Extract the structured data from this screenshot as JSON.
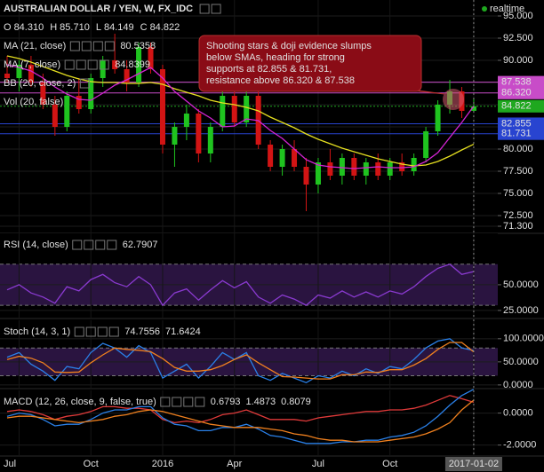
{
  "chart_data": [
    {
      "type": "candlestick",
      "title": "AUSTRALIAN DOLLAR / YEN, W, FX_IDC",
      "status": "realtime",
      "ohlc_legend": [
        {
          "key": "O",
          "label": "84.310"
        },
        {
          "key": "H",
          "label": "85.710"
        },
        {
          "key": "L",
          "label": "84.149"
        },
        {
          "key": "C",
          "label": "84.822"
        }
      ],
      "categories": [
        null,
        "Jul",
        null,
        null,
        null,
        null,
        null,
        "Oct",
        null,
        null,
        null,
        null,
        null,
        "2016",
        null,
        null,
        null,
        null,
        null,
        "Apr",
        null,
        null,
        null,
        null,
        null,
        null,
        "Jul",
        null,
        null,
        null,
        null,
        null,
        "Oct",
        null,
        null,
        null,
        null,
        null,
        null,
        "2017-01-02"
      ],
      "open": [
        88.5,
        88.0,
        89.5,
        87.5,
        85.0,
        82.5,
        86.0,
        84.5,
        88.0,
        90.0,
        89.0,
        87.5,
        91.5,
        89.0,
        80.5,
        82.5,
        84.0,
        79.5,
        82.5,
        86.0,
        83.0,
        86.0,
        80.5,
        78.0,
        80.0,
        78.0,
        76.0,
        78.5,
        77.0,
        79.0,
        77.0,
        78.5,
        77.0,
        78.5,
        77.5,
        79.0,
        82.0,
        85.0,
        86.5,
        84.31
      ],
      "high": [
        90.5,
        90.0,
        90.5,
        88.5,
        86.0,
        86.5,
        88.0,
        88.5,
        90.5,
        93.0,
        90.0,
        92.0,
        92.0,
        89.5,
        83.0,
        85.0,
        84.5,
        83.0,
        86.5,
        87.0,
        86.5,
        86.5,
        81.0,
        80.5,
        81.0,
        79.0,
        79.0,
        80.0,
        79.5,
        79.5,
        79.0,
        79.5,
        79.0,
        79.5,
        79.5,
        82.5,
        85.5,
        87.8,
        87.0,
        85.71
      ],
      "low": [
        87.5,
        86.5,
        87.0,
        84.5,
        81.5,
        82.0,
        84.0,
        84.0,
        87.0,
        88.5,
        86.5,
        87.0,
        88.5,
        79.5,
        78.0,
        81.0,
        78.5,
        78.5,
        82.0,
        82.5,
        82.5,
        80.0,
        77.5,
        77.0,
        77.5,
        73.0,
        75.0,
        76.5,
        76.0,
        76.5,
        76.0,
        76.5,
        76.5,
        77.0,
        77.0,
        78.5,
        81.5,
        84.0,
        83.5,
        84.149
      ],
      "close": [
        88.0,
        89.5,
        87.5,
        85.0,
        82.5,
        86.0,
        84.5,
        88.0,
        90.0,
        89.0,
        87.5,
        91.5,
        89.0,
        80.5,
        82.5,
        84.0,
        79.5,
        82.5,
        86.0,
        83.0,
        86.0,
        80.5,
        78.0,
        80.0,
        78.0,
        76.0,
        78.5,
        77.0,
        79.0,
        77.0,
        78.5,
        77.0,
        78.5,
        77.5,
        79.0,
        82.0,
        85.0,
        86.5,
        84.3,
        84.822
      ],
      "up_color": "#1fc41f",
      "down_color": "#d21414",
      "series": [
        {
          "name": "MA (21, close)",
          "color": "#e6e020",
          "values": [
            90.5,
            90.2,
            89.8,
            89.3,
            88.8,
            88.3,
            87.9,
            87.6,
            87.5,
            87.5,
            87.4,
            87.4,
            87.5,
            87.3,
            86.8,
            86.4,
            86.0,
            85.5,
            85.2,
            85.0,
            84.7,
            84.3,
            83.6,
            83.0,
            82.4,
            81.7,
            81.1,
            80.6,
            80.1,
            79.7,
            79.3,
            78.9,
            78.6,
            78.3,
            78.1,
            78.2,
            78.6,
            79.2,
            79.9,
            80.5358
          ]
        },
        {
          "name": "MA (7, close)",
          "color": "#d424d4",
          "values": [
            89.5,
            89.2,
            88.8,
            88.0,
            87.0,
            86.2,
            85.6,
            85.5,
            86.3,
            87.2,
            87.8,
            88.5,
            89.2,
            88.0,
            86.5,
            85.4,
            84.3,
            83.5,
            82.5,
            82.6,
            83.4,
            83.2,
            82.1,
            81.2,
            80.0,
            78.8,
            78.2,
            78.0,
            77.9,
            77.8,
            77.9,
            78.0,
            77.9,
            77.9,
            78.0,
            78.6,
            79.6,
            81.3,
            83.0,
            84.8399
          ]
        }
      ],
      "indicator_labels": [
        "BB (20, close, 2)",
        "Vol (20, false)"
      ],
      "levels": [
        {
          "value": 87.538,
          "color": "#c84cc8"
        },
        {
          "value": 86.32,
          "label": "86.320",
          "color": "#c84cc8"
        },
        {
          "value": 84.822,
          "color": "#1fa81f"
        },
        {
          "value": 82.855,
          "color": "#2844d0"
        },
        {
          "value": 81.731,
          "color": "#2844d0"
        }
      ],
      "annotation": [
        "Shooting stars & doji evidence slumps",
        "below SMAs, heading for strong",
        "supports at 82.855 & 81.731,",
        "resistance above 86.320 & 87.538"
      ],
      "ylim": [
        70.6,
        96.8
      ],
      "yticks": [
        {
          "value": 95,
          "label": "95.000"
        },
        {
          "value": 92.5,
          "label": "92.500"
        },
        {
          "value": 90,
          "label": "90.000"
        },
        {
          "value": 87.5,
          "label": "87.500"
        },
        {
          "value": 85,
          "label": "85.000"
        },
        {
          "value": 82.5,
          "label": "82.500"
        },
        {
          "value": 80,
          "label": "80.000"
        },
        {
          "value": 77.5,
          "label": "77.500"
        },
        {
          "value": 75,
          "label": "75.000"
        },
        {
          "value": 72.5,
          "label": "72.500"
        },
        {
          "value": 71.3,
          "label": "71.300"
        }
      ],
      "grid": true
    },
    {
      "type": "line",
      "title": "RSI (14, close)",
      "series": [
        {
          "color": "#8a3ad0",
          "values": [
            45,
            50,
            42,
            38,
            32,
            48,
            44,
            55,
            60,
            52,
            48,
            58,
            50,
            30,
            42,
            46,
            35,
            45,
            54,
            47,
            53,
            38,
            32,
            40,
            36,
            30,
            40,
            37,
            44,
            38,
            43,
            38,
            44,
            41,
            48,
            58,
            66,
            70,
            60,
            62.7907
          ]
        }
      ],
      "bands": [
        30,
        70
      ],
      "band_color": "#2a1440",
      "ylim": [
        18,
        100
      ],
      "yticks": [
        {
          "value": 50,
          "label": "50.0000"
        },
        {
          "value": 25,
          "label": "25.0000"
        }
      ],
      "grid": true
    },
    {
      "type": "line",
      "title": "Stoch (14, 3, 1)",
      "series": [
        {
          "color": "#2a80e8",
          "values": [
            60,
            70,
            45,
            30,
            10,
            40,
            35,
            70,
            90,
            80,
            60,
            85,
            70,
            15,
            30,
            45,
            15,
            40,
            70,
            55,
            70,
            20,
            10,
            25,
            15,
            5,
            20,
            15,
            30,
            20,
            35,
            25,
            40,
            35,
            55,
            80,
            95,
            100,
            80,
            74.7556
          ]
        },
        {
          "color": "#f0801e",
          "values": [
            55,
            62,
            58,
            48,
            28,
            27,
            28,
            48,
            65,
            80,
            77,
            75,
            72,
            57,
            38,
            30,
            30,
            33,
            42,
            55,
            65,
            48,
            33,
            18,
            17,
            15,
            13,
            13,
            22,
            22,
            28,
            27,
            33,
            33,
            43,
            57,
            77,
            92,
            92,
            71.6424
          ]
        }
      ],
      "bands": [
        20,
        80
      ],
      "band_color": "#2a1440",
      "ylim": [
        -6,
        140
      ],
      "yticks": [
        {
          "value": 100,
          "label": "100.0000"
        },
        {
          "value": 50,
          "label": "50.0000"
        },
        {
          "value": 0,
          "label": "0.0000"
        }
      ],
      "grid": true
    },
    {
      "type": "line",
      "title": "MACD (12, 26, close, 9, false, true)",
      "series": [
        {
          "color": "#e03a3a",
          "values": [
            0.1,
            0.2,
            0.1,
            -0.1,
            -0.4,
            -0.2,
            -0.1,
            0.1,
            0.4,
            0.4,
            0.3,
            0.3,
            0.2,
            -0.4,
            -0.6,
            -0.5,
            -0.6,
            -0.4,
            -0.1,
            0.0,
            0.2,
            -0.1,
            -0.4,
            -0.4,
            -0.4,
            -0.5,
            -0.3,
            -0.2,
            -0.1,
            0.0,
            0.1,
            0.1,
            0.2,
            0.2,
            0.3,
            0.5,
            0.8,
            1.1,
            0.9,
            0.6793
          ]
        },
        {
          "color": "#2a80e8",
          "values": [
            -0.2,
            0.0,
            -0.1,
            -0.4,
            -0.8,
            -0.7,
            -0.7,
            -0.4,
            0.0,
            0.2,
            0.2,
            0.4,
            0.4,
            -0.3,
            -0.7,
            -0.8,
            -1.1,
            -1.1,
            -0.9,
            -0.9,
            -0.7,
            -1.0,
            -1.4,
            -1.5,
            -1.7,
            -1.9,
            -1.9,
            -1.9,
            -1.8,
            -1.8,
            -1.7,
            -1.7,
            -1.5,
            -1.4,
            -1.2,
            -0.8,
            -0.2,
            0.5,
            1.1,
            1.4873
          ]
        },
        {
          "color": "#f0801e",
          "values": [
            -0.3,
            -0.2,
            -0.2,
            -0.3,
            -0.4,
            -0.5,
            -0.6,
            -0.5,
            -0.4,
            -0.2,
            -0.1,
            0.1,
            0.2,
            0.1,
            -0.1,
            -0.3,
            -0.5,
            -0.7,
            -0.8,
            -0.9,
            -0.9,
            -0.9,
            -1.0,
            -1.1,
            -1.3,
            -1.4,
            -1.6,
            -1.7,
            -1.7,
            -1.8,
            -1.8,
            -1.8,
            -1.7,
            -1.6,
            -1.5,
            -1.3,
            -1.0,
            -0.6,
            0.2,
            0.8079
          ]
        }
      ],
      "ylim": [
        -2.63,
        1.42
      ],
      "yticks": [
        {
          "value": 0,
          "label": "0.0000"
        },
        {
          "value": -2,
          "label": "-2.0000"
        }
      ],
      "grid": true
    }
  ]
}
